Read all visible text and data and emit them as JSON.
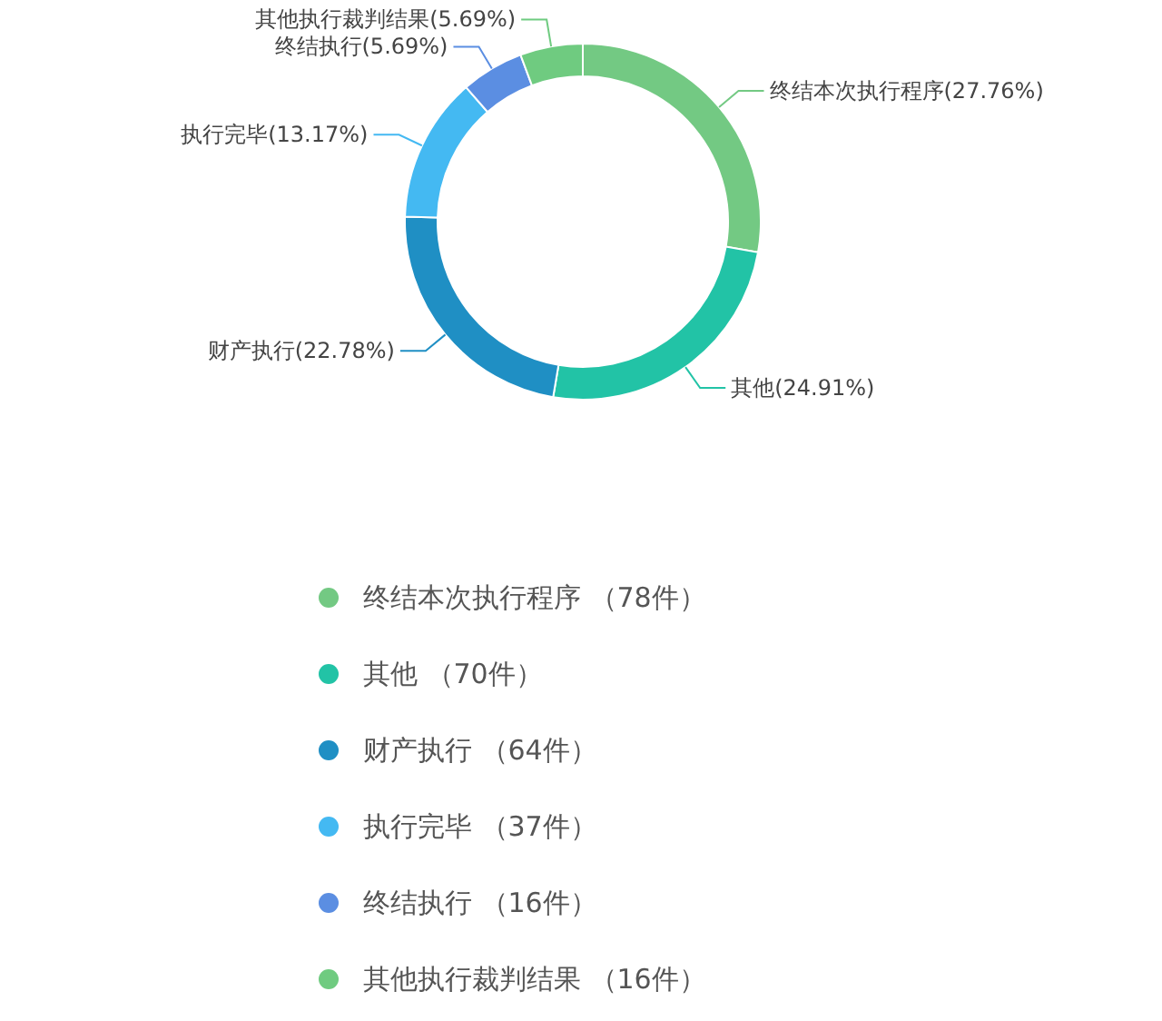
{
  "chart_data": {
    "type": "donut",
    "legend": "bottom",
    "categories": [
      "终结本次执行程序 （78件）",
      "其他 （70件）",
      "财产执行 （64件）",
      "执行完毕 （37件）",
      "终结执行 （16件）",
      "其他执行裁判结果 （16件）"
    ],
    "values": [
      78,
      70,
      64,
      37,
      16,
      16
    ],
    "value_labels": [
      "终结本次执行程序(27.76%)",
      "其他(24.91%)",
      "财产执行(22.78%)",
      "执行完毕(13.17%)",
      "终结执行(5.69%)",
      "其他执行裁判结果(5.69%)"
    ],
    "colors": [
      "#73c983",
      "#22c3a6",
      "#1f8fc4",
      "#44b9f2",
      "#5b8ee2",
      "#6fcb80"
    ]
  }
}
